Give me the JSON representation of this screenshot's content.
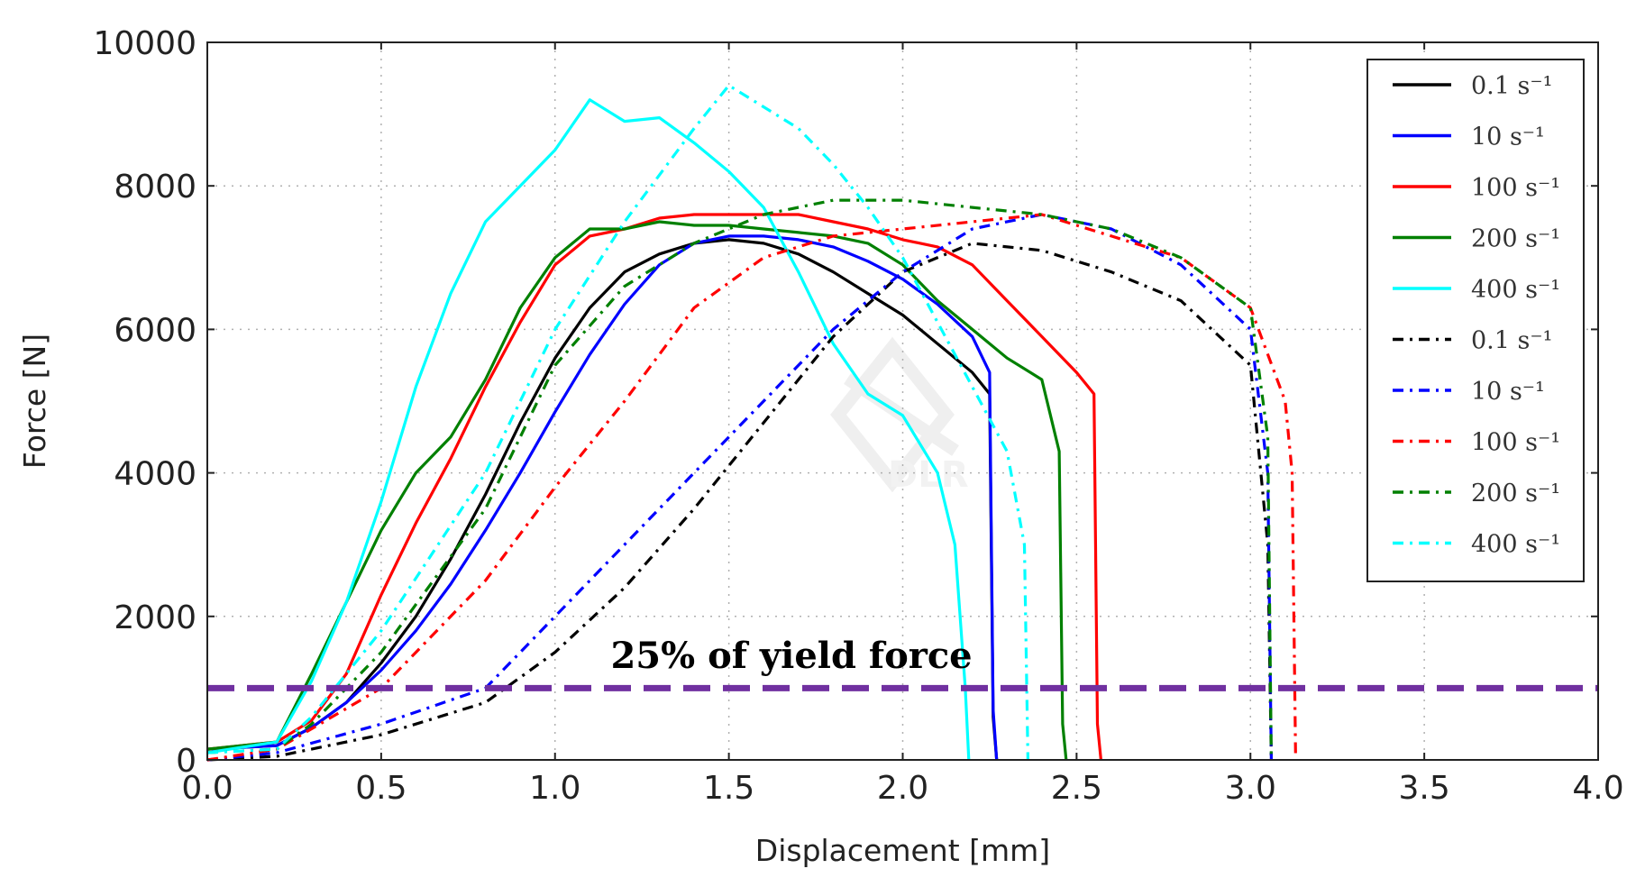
{
  "chart_data": {
    "type": "line",
    "title": "",
    "xlabel": "Displacement [mm]",
    "ylabel": "Force [N]",
    "xlim": [
      0.0,
      4.0
    ],
    "ylim": [
      0,
      10000
    ],
    "xticks": [
      0.0,
      0.5,
      1.0,
      1.5,
      2.0,
      2.5,
      3.0,
      3.5,
      4.0
    ],
    "xtick_labels": [
      "0.0",
      "0.5",
      "1.0",
      "1.5",
      "2.0",
      "2.5",
      "3.0",
      "3.5",
      "4.0"
    ],
    "yticks": [
      0,
      2000,
      4000,
      6000,
      8000,
      10000
    ],
    "ytick_labels": [
      "0",
      "2000",
      "4000",
      "6000",
      "8000",
      "10000"
    ],
    "grid": true,
    "legend_position": "top-right",
    "watermark": "DLR",
    "series": [
      {
        "name": "0.1 s⁻¹",
        "color": "#000000",
        "style": "solid",
        "x": [
          0,
          0.2,
          0.3,
          0.4,
          0.5,
          0.6,
          0.7,
          0.8,
          0.9,
          1.0,
          1.1,
          1.2,
          1.3,
          1.4,
          1.5,
          1.6,
          1.7,
          1.8,
          1.9,
          2.0,
          2.1,
          2.2,
          2.25,
          2.26,
          2.27
        ],
        "y": [
          150,
          200,
          450,
          800,
          1350,
          2000,
          2800,
          3700,
          4700,
          5600,
          6300,
          6800,
          7050,
          7200,
          7250,
          7200,
          7050,
          6800,
          6500,
          6200,
          5800,
          5400,
          5100,
          600,
          0
        ]
      },
      {
        "name": "10 s⁻¹",
        "color": "#0000ff",
        "style": "solid",
        "x": [
          0,
          0.2,
          0.3,
          0.4,
          0.5,
          0.6,
          0.7,
          0.8,
          0.9,
          1.0,
          1.1,
          1.2,
          1.3,
          1.4,
          1.5,
          1.6,
          1.7,
          1.8,
          1.9,
          2.0,
          2.1,
          2.2,
          2.25,
          2.26,
          2.27
        ],
        "y": [
          150,
          200,
          450,
          800,
          1250,
          1800,
          2450,
          3200,
          4000,
          4850,
          5650,
          6350,
          6900,
          7200,
          7300,
          7300,
          7250,
          7150,
          6950,
          6700,
          6350,
          5900,
          5400,
          700,
          0
        ]
      },
      {
        "name": "100 s⁻¹",
        "color": "#ff0000",
        "style": "solid",
        "x": [
          0,
          0.2,
          0.3,
          0.4,
          0.5,
          0.6,
          0.7,
          0.8,
          0.9,
          1.0,
          1.1,
          1.2,
          1.3,
          1.4,
          1.5,
          1.6,
          1.7,
          1.8,
          1.9,
          2.0,
          2.1,
          2.2,
          2.3,
          2.4,
          2.5,
          2.55,
          2.56,
          2.57
        ],
        "y": [
          150,
          250,
          550,
          1200,
          2300,
          3300,
          4200,
          5200,
          6100,
          6900,
          7300,
          7400,
          7550,
          7600,
          7600,
          7600,
          7600,
          7500,
          7400,
          7250,
          7150,
          6900,
          6400,
          5900,
          5400,
          5100,
          500,
          0
        ]
      },
      {
        "name": "200 s⁻¹",
        "color": "#008000",
        "style": "solid",
        "x": [
          0,
          0.2,
          0.3,
          0.4,
          0.5,
          0.6,
          0.7,
          0.8,
          0.9,
          1.0,
          1.1,
          1.2,
          1.3,
          1.4,
          1.5,
          1.6,
          1.7,
          1.8,
          1.9,
          2.0,
          2.1,
          2.2,
          2.3,
          2.4,
          2.45,
          2.46,
          2.47
        ],
        "y": [
          150,
          250,
          1200,
          2200,
          3200,
          4000,
          4500,
          5300,
          6300,
          7000,
          7400,
          7400,
          7500,
          7450,
          7450,
          7400,
          7350,
          7300,
          7200,
          6900,
          6400,
          6000,
          5600,
          5300,
          4300,
          500,
          0
        ]
      },
      {
        "name": "400 s⁻¹",
        "color": "#00ffff",
        "style": "solid",
        "x": [
          0,
          0.2,
          0.3,
          0.4,
          0.5,
          0.6,
          0.7,
          0.8,
          0.9,
          1.0,
          1.1,
          1.2,
          1.3,
          1.4,
          1.5,
          1.6,
          1.7,
          1.8,
          1.9,
          2.0,
          2.1,
          2.15,
          2.18,
          2.19
        ],
        "y": [
          100,
          250,
          1100,
          2200,
          3600,
          5200,
          6500,
          7500,
          8000,
          8500,
          9200,
          8900,
          8950,
          8600,
          8200,
          7700,
          6800,
          5800,
          5100,
          4800,
          4000,
          3000,
          1000,
          0
        ]
      },
      {
        "name": "0.1 s⁻¹",
        "color": "#000000",
        "style": "dashdot",
        "x": [
          0,
          0.2,
          0.5,
          0.8,
          1.0,
          1.2,
          1.4,
          1.6,
          1.8,
          2.0,
          2.2,
          2.4,
          2.6,
          2.8,
          3.0,
          3.05,
          3.06
        ],
        "y": [
          0,
          50,
          350,
          800,
          1500,
          2400,
          3500,
          4700,
          5900,
          6800,
          7200,
          7100,
          6800,
          6400,
          5500,
          3000,
          0
        ]
      },
      {
        "name": "10 s⁻¹",
        "color": "#0000ff",
        "style": "dashdot",
        "x": [
          0,
          0.2,
          0.5,
          0.8,
          1.0,
          1.2,
          1.4,
          1.6,
          1.8,
          2.0,
          2.2,
          2.4,
          2.6,
          2.8,
          3.0,
          3.05,
          3.06
        ],
        "y": [
          0,
          100,
          500,
          1000,
          2000,
          3000,
          4000,
          5000,
          6000,
          6800,
          7400,
          7600,
          7400,
          6900,
          6000,
          4000,
          0
        ]
      },
      {
        "name": "100 s⁻¹",
        "color": "#ff0000",
        "style": "dashdot",
        "x": [
          0,
          0.2,
          0.5,
          0.8,
          1.0,
          1.2,
          1.4,
          1.6,
          1.8,
          2.0,
          2.2,
          2.4,
          2.6,
          2.8,
          3.0,
          3.1,
          3.12,
          3.13
        ],
        "y": [
          0,
          150,
          1000,
          2500,
          3800,
          5000,
          6300,
          7000,
          7300,
          7400,
          7500,
          7600,
          7300,
          7000,
          6300,
          5000,
          4000,
          0
        ]
      },
      {
        "name": "200 s⁻¹",
        "color": "#008000",
        "style": "dashdot",
        "x": [
          0,
          0.2,
          0.3,
          0.5,
          0.8,
          1.0,
          1.2,
          1.4,
          1.6,
          1.8,
          2.0,
          2.2,
          2.4,
          2.6,
          2.8,
          3.0,
          3.05,
          3.06
        ],
        "y": [
          100,
          150,
          500,
          1500,
          3500,
          5500,
          6600,
          7200,
          7600,
          7800,
          7800,
          7700,
          7600,
          7400,
          7000,
          6300,
          4500,
          0
        ]
      },
      {
        "name": "400 s⁻¹",
        "color": "#00ffff",
        "style": "dashdot",
        "x": [
          0,
          0.2,
          0.3,
          0.5,
          0.8,
          1.0,
          1.2,
          1.4,
          1.5,
          1.6,
          1.7,
          1.8,
          1.9,
          2.0,
          2.1,
          2.2,
          2.3,
          2.35,
          2.36
        ],
        "y": [
          100,
          150,
          600,
          1800,
          4000,
          6000,
          7500,
          8800,
          9400,
          9100,
          8800,
          8300,
          7700,
          7000,
          6100,
          5200,
          4300,
          3000,
          0
        ]
      }
    ],
    "reference_line": {
      "y": 1000,
      "label": "25% of yield force",
      "color": "#7030a0"
    }
  }
}
